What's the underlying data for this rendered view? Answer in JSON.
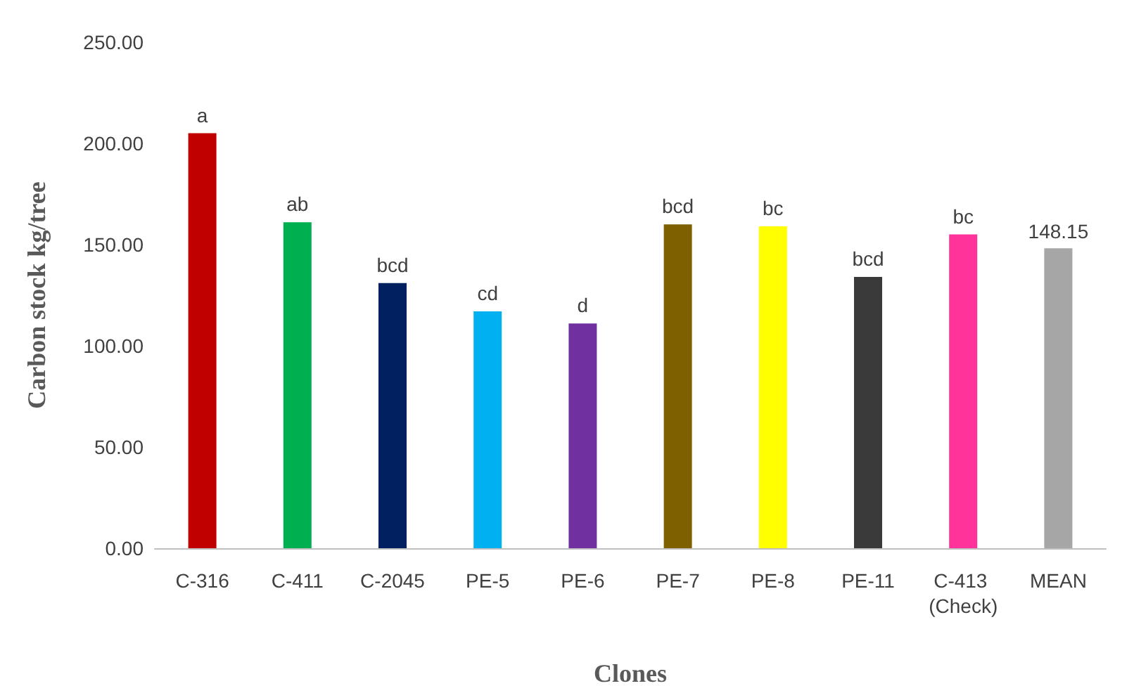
{
  "chart_data": {
    "type": "bar",
    "xlabel": "Clones",
    "ylabel": "Carbon stock kg/tree",
    "categories": [
      "C-316",
      "C-411",
      "C-2045",
      "PE-5",
      "PE-6",
      "PE-7",
      "PE-8",
      "PE-11",
      "C-413 (Check)",
      "MEAN"
    ],
    "values": [
      205,
      161,
      131,
      117,
      111,
      160,
      159,
      134,
      155,
      148.15
    ],
    "value_labels": [
      null,
      null,
      null,
      null,
      null,
      null,
      null,
      null,
      null,
      "148.15"
    ],
    "colors": [
      "#c00000",
      "#00b050",
      "#002060",
      "#00b0f0",
      "#7030a0",
      "#7f6000",
      "#ffff00",
      "#3a3a3a",
      "#ff3399",
      "#a6a6a6"
    ],
    "ylim": [
      0,
      250
    ],
    "yticks": [
      {
        "value": 0,
        "label": "0.00"
      },
      {
        "value": 50,
        "label": "50.00"
      },
      {
        "value": 100,
        "label": "100.00"
      },
      {
        "value": 150,
        "label": "150.00"
      },
      {
        "value": 200,
        "label": "200.00"
      },
      {
        "value": 250,
        "label": "250.00"
      }
    ],
    "annotations": [
      {
        "text": "a",
        "x": "C-316",
        "y": 205
      },
      {
        "text": "ab",
        "x": "C-411",
        "y": 161
      },
      {
        "text": "bcd",
        "x": "C-2045",
        "y": 131
      },
      {
        "text": "cd",
        "x": "PE-5",
        "y": 117
      },
      {
        "text": "d",
        "x": "PE-6",
        "y": 111
      },
      {
        "text": "bcd",
        "x": "PE-7",
        "y": 160
      },
      {
        "text": "bc",
        "x": "PE-8",
        "y": 159
      },
      {
        "text": "bcd",
        "x": "PE-11",
        "y": 134
      },
      {
        "text": "bc",
        "x": "C-413 (Check)",
        "y": 155
      }
    ]
  }
}
